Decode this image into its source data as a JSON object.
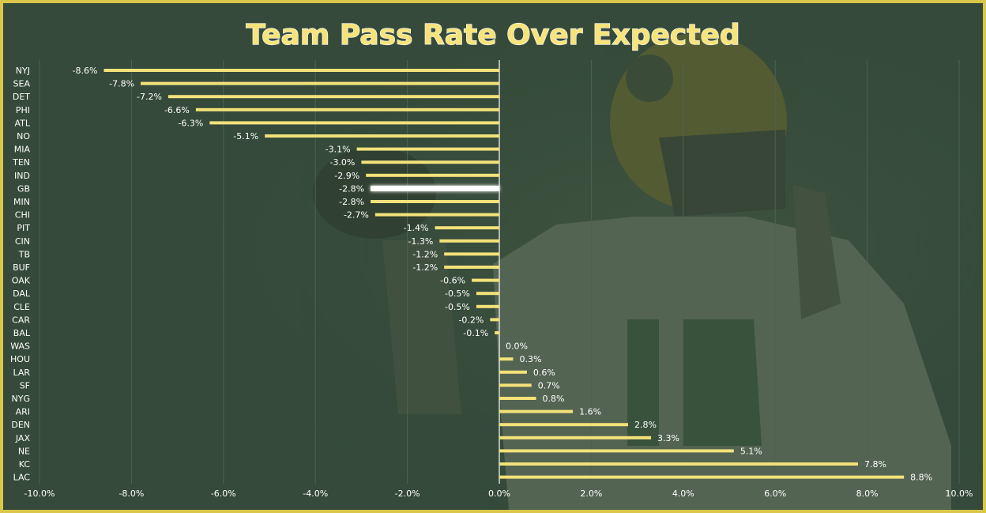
{
  "colors": {
    "background": "#354a3a",
    "border": "#d9c64a",
    "bar": "#f3e27a",
    "highlight": "#ffffff",
    "grid": "#4d6351",
    "zero_line": "#ffffff"
  },
  "chart_data": {
    "type": "bar",
    "orientation": "horizontal",
    "title": "Team Pass Rate Over Expected",
    "xlabel": "",
    "ylabel": "",
    "xlim": [
      -10,
      10
    ],
    "x_ticks": [
      -10,
      -8,
      -6,
      -4,
      -2,
      0,
      2,
      4,
      6,
      8,
      10
    ],
    "x_tick_labels": [
      "-10.0%",
      "-8.0%",
      "-6.0%",
      "-4.0%",
      "-2.0%",
      "0.0%",
      "2.0%",
      "4.0%",
      "6.0%",
      "8.0%",
      "10.0%"
    ],
    "grid": true,
    "highlighted": "GB",
    "categories": [
      "NYJ",
      "SEA",
      "DET",
      "PHI",
      "ATL",
      "NO",
      "MIA",
      "TEN",
      "IND",
      "GB",
      "MIN",
      "CHI",
      "PIT",
      "CIN",
      "TB",
      "BUF",
      "OAK",
      "DAL",
      "CLE",
      "CAR",
      "BAL",
      "WAS",
      "HOU",
      "LAR",
      "SF",
      "NYG",
      "ARI",
      "DEN",
      "JAX",
      "NE",
      "KC",
      "LAC"
    ],
    "values": [
      -8.6,
      -7.8,
      -7.2,
      -6.6,
      -6.3,
      -5.1,
      -3.1,
      -3.0,
      -2.9,
      -2.8,
      -2.8,
      -2.7,
      -1.4,
      -1.3,
      -1.2,
      -1.2,
      -0.6,
      -0.5,
      -0.5,
      -0.2,
      -0.1,
      0.0,
      0.3,
      0.6,
      0.7,
      0.8,
      1.6,
      2.8,
      3.3,
      5.1,
      7.8,
      8.8
    ],
    "value_labels": [
      "-8.6%",
      "-7.8%",
      "-7.2%",
      "-6.6%",
      "-6.3%",
      "-5.1%",
      "-3.1%",
      "-3.0%",
      "-2.9%",
      "-2.8%",
      "-2.8%",
      "-2.7%",
      "-1.4%",
      "-1.3%",
      "-1.2%",
      "-1.2%",
      "-0.6%",
      "-0.5%",
      "-0.5%",
      "-0.2%",
      "-0.1%",
      "0.0%",
      "0.3%",
      "0.6%",
      "0.7%",
      "0.8%",
      "1.6%",
      "2.8%",
      "3.3%",
      "5.1%",
      "7.8%",
      "8.8%"
    ]
  }
}
